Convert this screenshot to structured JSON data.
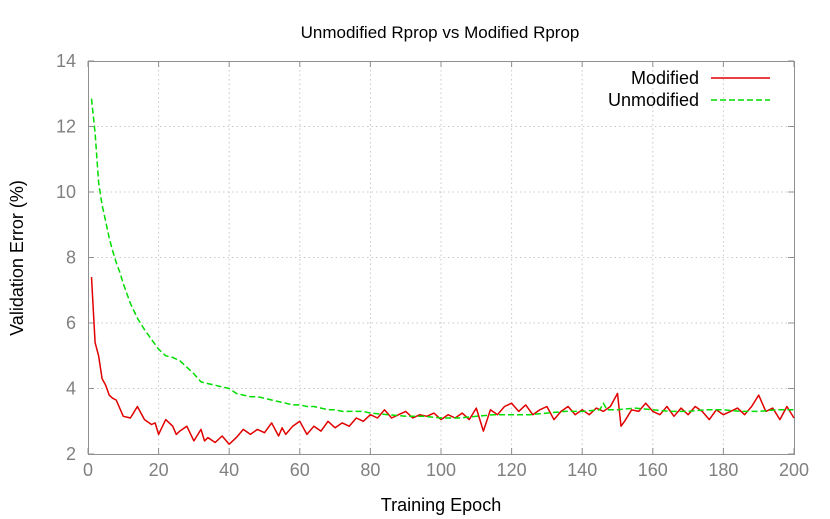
{
  "chart_data": {
    "type": "line",
    "title": "Unmodified Rprop vs Modified Rprop",
    "xlabel": "Training Epoch",
    "ylabel": "Validation Error (%)",
    "xlim": [
      0,
      200
    ],
    "ylim": [
      2,
      14
    ],
    "xticks": [
      0,
      20,
      40,
      60,
      80,
      100,
      120,
      140,
      160,
      180,
      200
    ],
    "yticks": [
      2,
      4,
      6,
      8,
      10,
      12,
      14
    ],
    "grid": true,
    "legend_position": "top-right",
    "series": [
      {
        "name": "Modified",
        "color": "#e00000",
        "dash": "solid",
        "x": [
          1,
          2,
          3,
          4,
          5,
          6,
          7,
          8,
          10,
          12,
          14,
          16,
          18,
          19,
          20,
          22,
          24,
          25,
          26,
          28,
          30,
          32,
          33,
          34,
          36,
          38,
          40,
          42,
          44,
          46,
          48,
          50,
          52,
          54,
          55,
          56,
          58,
          60,
          62,
          64,
          66,
          68,
          70,
          72,
          74,
          76,
          78,
          80,
          82,
          84,
          86,
          88,
          90,
          92,
          94,
          96,
          98,
          100,
          102,
          104,
          106,
          108,
          110,
          112,
          114,
          116,
          118,
          120,
          122,
          124,
          126,
          128,
          130,
          132,
          134,
          136,
          138,
          140,
          142,
          144,
          146,
          148,
          150,
          151,
          152,
          154,
          156,
          158,
          160,
          162,
          164,
          166,
          168,
          170,
          172,
          174,
          176,
          178,
          180,
          182,
          184,
          186,
          188,
          190,
          192,
          194,
          196,
          198,
          200
        ],
        "y": [
          7.4,
          5.4,
          5.0,
          4.3,
          4.1,
          3.8,
          3.7,
          3.65,
          3.15,
          3.1,
          3.45,
          3.05,
          2.9,
          2.95,
          2.6,
          3.05,
          2.85,
          2.6,
          2.7,
          2.85,
          2.4,
          2.75,
          2.4,
          2.5,
          2.35,
          2.55,
          2.3,
          2.5,
          2.75,
          2.6,
          2.75,
          2.65,
          2.95,
          2.55,
          2.8,
          2.6,
          2.85,
          3.0,
          2.6,
          2.85,
          2.7,
          3.0,
          2.8,
          2.95,
          2.85,
          3.1,
          3.0,
          3.2,
          3.1,
          3.35,
          3.1,
          3.2,
          3.3,
          3.1,
          3.2,
          3.15,
          3.25,
          3.05,
          3.2,
          3.1,
          3.25,
          3.05,
          3.4,
          2.7,
          3.35,
          3.2,
          3.45,
          3.55,
          3.3,
          3.5,
          3.2,
          3.35,
          3.45,
          3.05,
          3.3,
          3.45,
          3.2,
          3.35,
          3.2,
          3.4,
          3.3,
          3.45,
          3.85,
          2.85,
          3.0,
          3.35,
          3.3,
          3.55,
          3.3,
          3.2,
          3.45,
          3.15,
          3.4,
          3.2,
          3.45,
          3.3,
          3.05,
          3.35,
          3.2,
          3.3,
          3.4,
          3.2,
          3.45,
          3.8,
          3.3,
          3.4,
          3.05,
          3.45,
          3.1
        ]
      },
      {
        "name": "Unmodified",
        "color": "#00dd00",
        "dash": "dashed",
        "x": [
          1,
          2,
          3,
          4,
          5,
          6,
          7,
          8,
          9,
          10,
          12,
          14,
          16,
          18,
          20,
          22,
          24,
          26,
          28,
          30,
          32,
          34,
          36,
          38,
          40,
          42,
          44,
          46,
          48,
          50,
          52,
          54,
          56,
          58,
          60,
          62,
          64,
          66,
          68,
          70,
          72,
          74,
          76,
          78,
          80,
          85,
          90,
          95,
          100,
          105,
          110,
          115,
          120,
          125,
          130,
          135,
          140,
          145,
          146,
          147,
          150,
          155,
          160,
          165,
          170,
          175,
          180,
          185,
          190,
          195,
          200
        ],
        "y": [
          12.85,
          11.8,
          10.3,
          9.6,
          9.1,
          8.6,
          8.2,
          7.85,
          7.55,
          7.2,
          6.6,
          6.15,
          5.8,
          5.5,
          5.2,
          5.0,
          4.95,
          4.85,
          4.65,
          4.45,
          4.2,
          4.15,
          4.1,
          4.05,
          4.0,
          3.85,
          3.8,
          3.75,
          3.75,
          3.7,
          3.65,
          3.6,
          3.55,
          3.5,
          3.5,
          3.45,
          3.45,
          3.4,
          3.35,
          3.35,
          3.3,
          3.3,
          3.3,
          3.3,
          3.25,
          3.2,
          3.15,
          3.15,
          3.1,
          3.1,
          3.15,
          3.2,
          3.2,
          3.2,
          3.25,
          3.3,
          3.3,
          3.35,
          3.55,
          3.35,
          3.35,
          3.4,
          3.35,
          3.3,
          3.3,
          3.35,
          3.35,
          3.3,
          3.3,
          3.35,
          3.35
        ]
      }
    ]
  }
}
